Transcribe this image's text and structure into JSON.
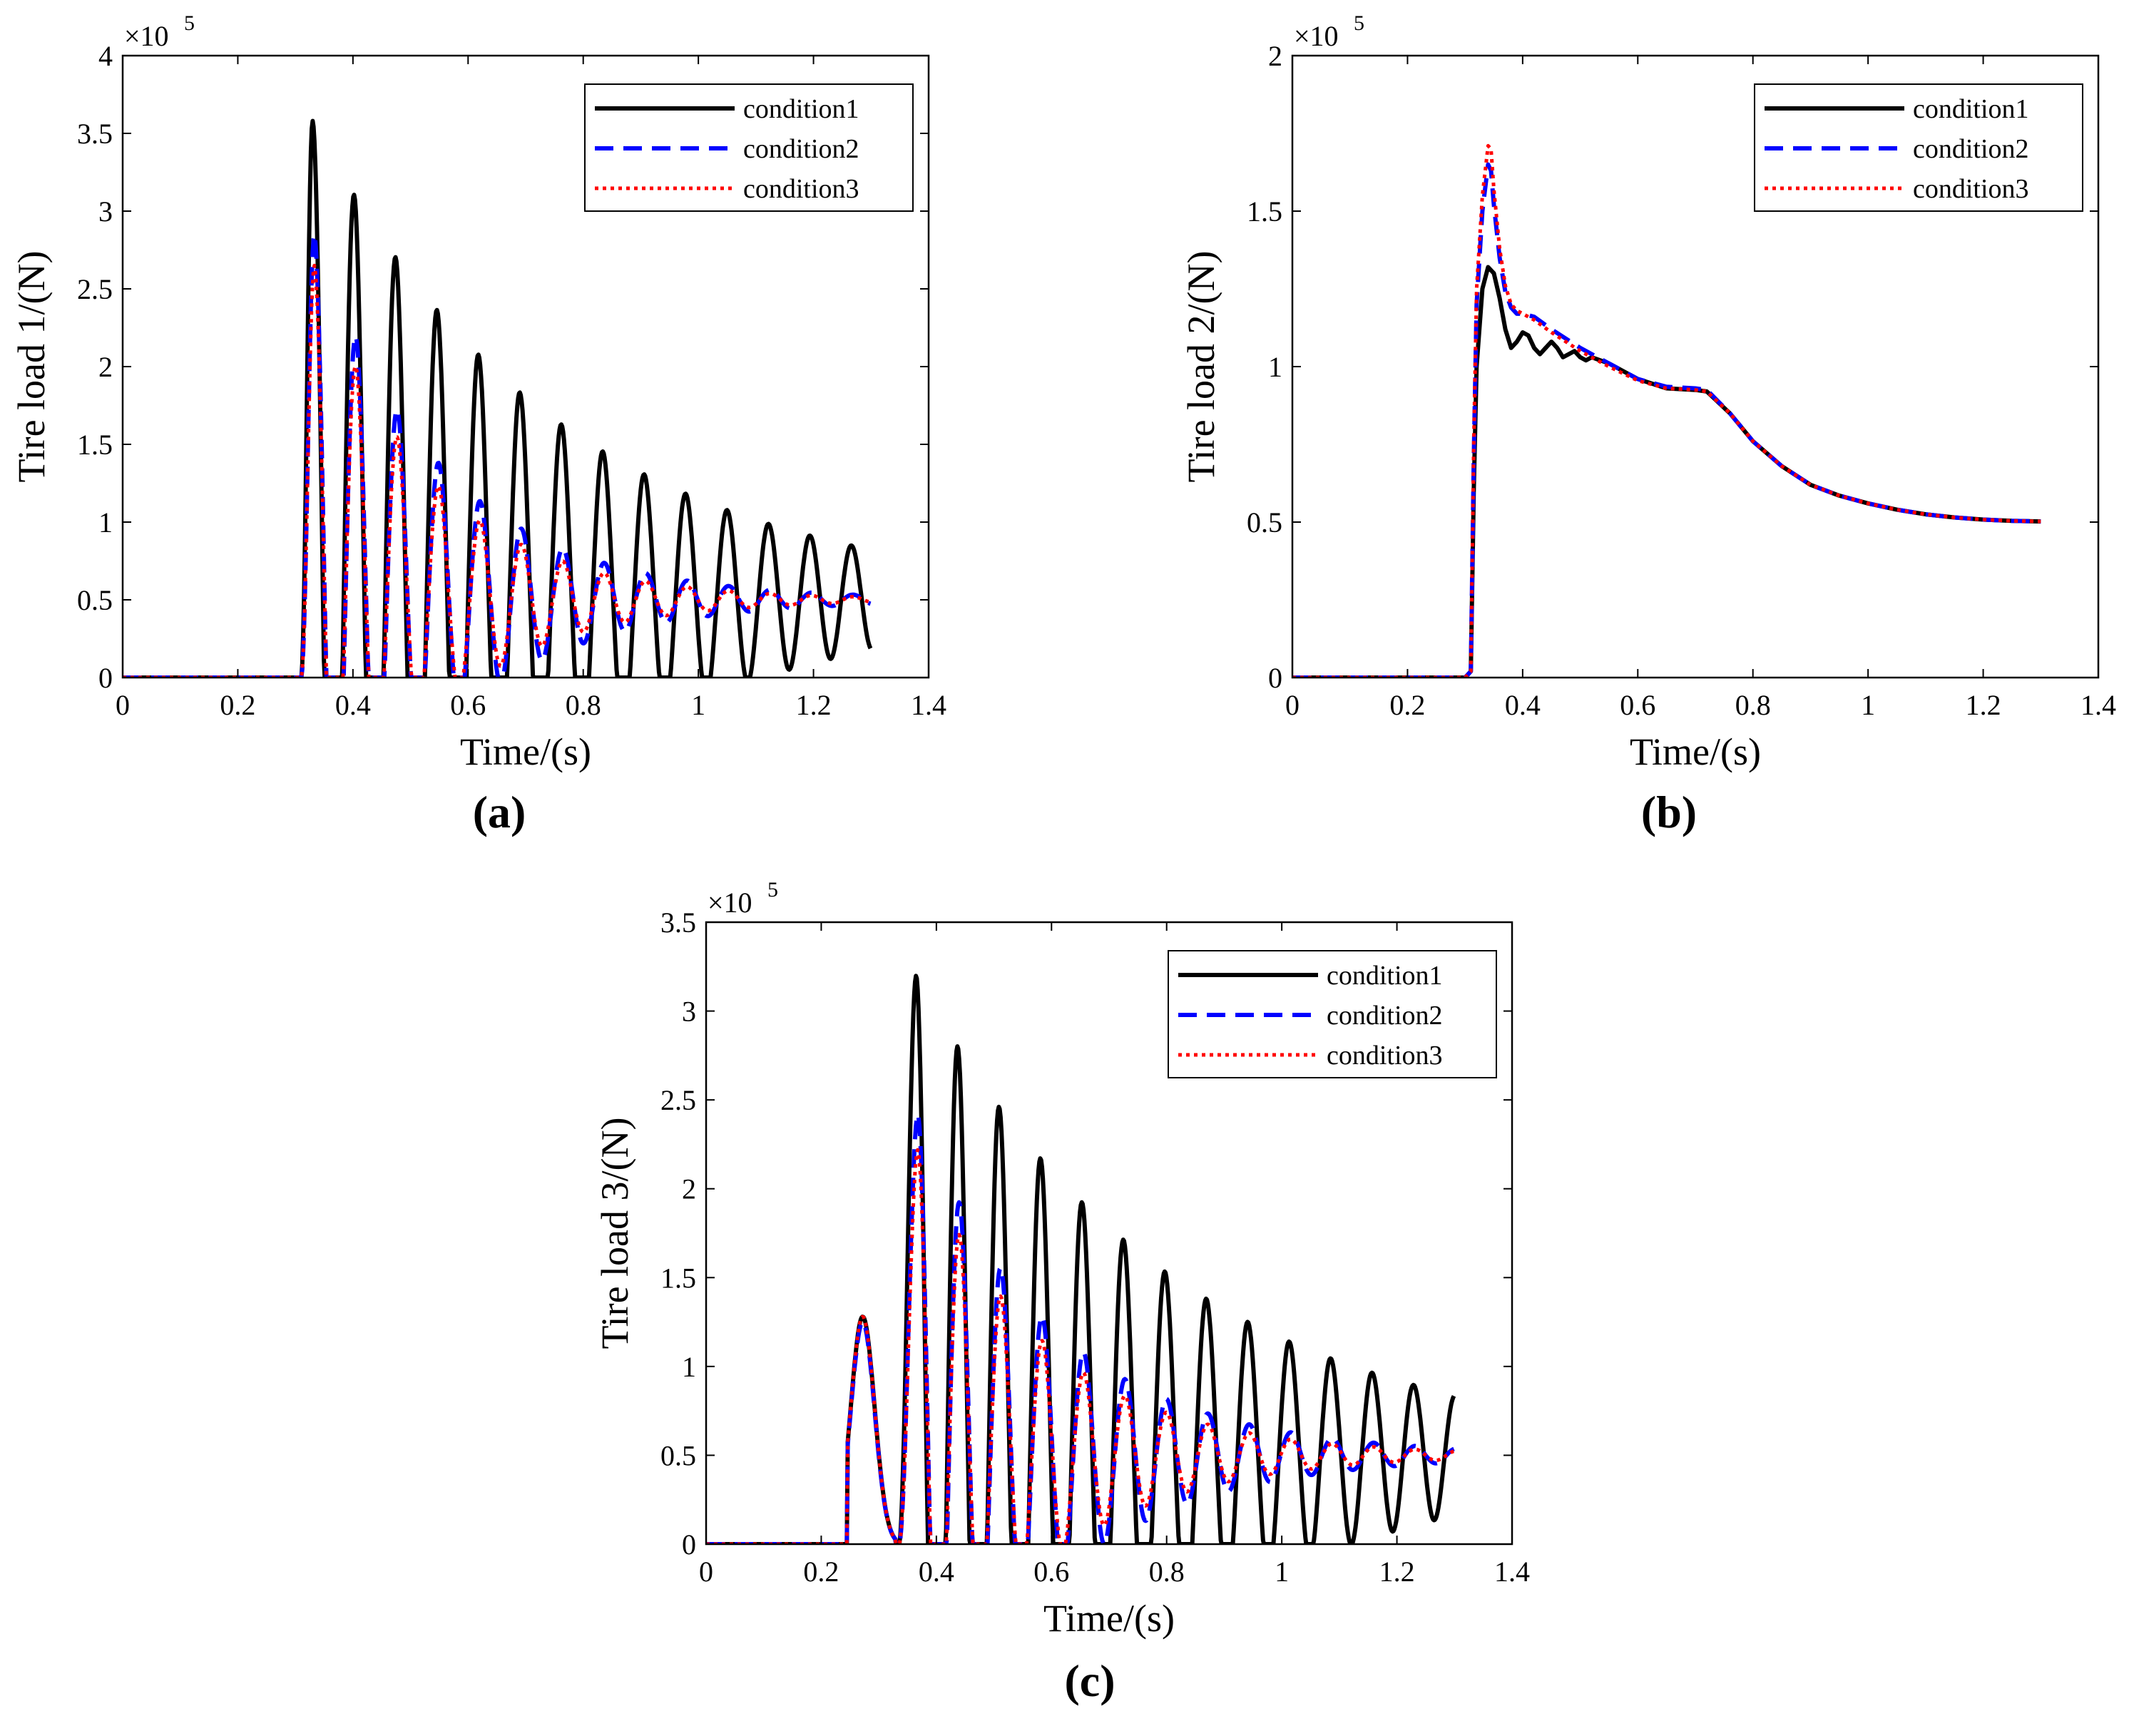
{
  "figure": {
    "panel_labels": [
      "(a)",
      "(b)",
      "(c)"
    ]
  },
  "chart_data": [
    {
      "type": "line",
      "panel": "(a)",
      "xlabel": "Time/(s)",
      "ylabel": "Tire load 1/(N)",
      "exponent_label": "×10",
      "exponent_power": "5",
      "xlim": [
        0,
        1.4
      ],
      "ylim": [
        0,
        4
      ],
      "xticks": [
        0,
        0.2,
        0.4,
        0.6,
        0.8,
        1,
        1.2,
        1.4
      ],
      "xtick_labels": [
        "0",
        "0.2",
        "0.4",
        "0.6",
        "0.8",
        "1",
        "1.2",
        "1.4"
      ],
      "yticks": [
        0,
        0.5,
        1,
        1.5,
        2,
        2.5,
        3,
        3.5,
        4
      ],
      "ytick_labels": [
        "0",
        "0.5",
        "1",
        "1.5",
        "2",
        "2.5",
        "3",
        "3.5",
        "4"
      ],
      "legend_position": "top-right",
      "series": [
        {
          "name": "condition1",
          "color": "#000000",
          "style": "solid",
          "params": {
            "t0": 0.31,
            "rise": 0.02,
            "peak": 3.58,
            "base": 0.5,
            "period": 0.072,
            "decay": 0.43,
            "firstPeak": 0.33,
            "floor": 0
          }
        },
        {
          "name": "condition2",
          "color": "#0000ff",
          "style": "dashed",
          "params": {
            "t0": 0.31,
            "rise": 0.02,
            "peak": 2.85,
            "base": 0.5,
            "period": 0.072,
            "decay": 0.22,
            "firstPeak": 0.333,
            "floor": 0
          }
        },
        {
          "name": "condition3",
          "color": "#ff0000",
          "style": "dotted",
          "params": {
            "t0": 0.31,
            "rise": 0.02,
            "peak": 2.65,
            "base": 0.5,
            "period": 0.072,
            "decay": 0.2,
            "firstPeak": 0.333,
            "floor": 0
          }
        }
      ]
    },
    {
      "type": "line",
      "panel": "(b)",
      "xlabel": "Time/(s)",
      "ylabel": "Tire load 2/(N)",
      "exponent_label": "×10",
      "exponent_power": "5",
      "xlim": [
        0,
        1.4
      ],
      "ylim": [
        0,
        2
      ],
      "xticks": [
        0,
        0.2,
        0.4,
        0.6,
        0.8,
        1,
        1.2,
        1.4
      ],
      "xtick_labels": [
        "0",
        "0.2",
        "0.4",
        "0.6",
        "0.8",
        "1",
        "1.2",
        "1.4"
      ],
      "yticks": [
        0,
        0.5,
        1,
        1.5,
        2
      ],
      "ytick_labels": [
        "0",
        "0.5",
        "1",
        "1.5",
        "2"
      ],
      "legend_position": "top-right",
      "series": [
        {
          "name": "condition1",
          "color": "#000000",
          "style": "solid",
          "points": [
            [
              0,
              0
            ],
            [
              0.3,
              0
            ],
            [
              0.31,
              0.02
            ],
            [
              0.315,
              0.6
            ],
            [
              0.32,
              1.0
            ],
            [
              0.33,
              1.25
            ],
            [
              0.34,
              1.32
            ],
            [
              0.35,
              1.3
            ],
            [
              0.36,
              1.22
            ],
            [
              0.37,
              1.12
            ],
            [
              0.38,
              1.06
            ],
            [
              0.39,
              1.08
            ],
            [
              0.4,
              1.11
            ],
            [
              0.41,
              1.1
            ],
            [
              0.42,
              1.06
            ],
            [
              0.43,
              1.04
            ],
            [
              0.44,
              1.06
            ],
            [
              0.45,
              1.08
            ],
            [
              0.46,
              1.06
            ],
            [
              0.47,
              1.03
            ],
            [
              0.48,
              1.04
            ],
            [
              0.49,
              1.05
            ],
            [
              0.5,
              1.03
            ],
            [
              0.51,
              1.02
            ],
            [
              0.52,
              1.03
            ],
            [
              0.55,
              1.01
            ],
            [
              0.6,
              0.96
            ],
            [
              0.65,
              0.93
            ],
            [
              0.7,
              0.925
            ],
            [
              0.72,
              0.92
            ],
            [
              0.76,
              0.85
            ],
            [
              0.8,
              0.76
            ],
            [
              0.85,
              0.68
            ],
            [
              0.9,
              0.62
            ],
            [
              0.95,
              0.585
            ],
            [
              1.0,
              0.56
            ],
            [
              1.05,
              0.54
            ],
            [
              1.1,
              0.525
            ],
            [
              1.15,
              0.515
            ],
            [
              1.2,
              0.508
            ],
            [
              1.25,
              0.504
            ],
            [
              1.3,
              0.502
            ]
          ]
        },
        {
          "name": "condition2",
          "color": "#0000ff",
          "style": "dashed",
          "points": [
            [
              0,
              0
            ],
            [
              0.3,
              0
            ],
            [
              0.31,
              0.02
            ],
            [
              0.315,
              0.7
            ],
            [
              0.32,
              1.2
            ],
            [
              0.33,
              1.5
            ],
            [
              0.34,
              1.65
            ],
            [
              0.345,
              1.63
            ],
            [
              0.35,
              1.52
            ],
            [
              0.36,
              1.35
            ],
            [
              0.37,
              1.24
            ],
            [
              0.38,
              1.19
            ],
            [
              0.39,
              1.17
            ],
            [
              0.4,
              1.17
            ],
            [
              0.42,
              1.16
            ],
            [
              0.45,
              1.12
            ],
            [
              0.5,
              1.06
            ],
            [
              0.55,
              1.01
            ],
            [
              0.6,
              0.96
            ],
            [
              0.65,
              0.935
            ],
            [
              0.7,
              0.93
            ],
            [
              0.72,
              0.925
            ],
            [
              0.76,
              0.85
            ],
            [
              0.8,
              0.76
            ],
            [
              0.85,
              0.68
            ],
            [
              0.9,
              0.62
            ],
            [
              0.95,
              0.585
            ],
            [
              1.0,
              0.56
            ],
            [
              1.05,
              0.54
            ],
            [
              1.1,
              0.525
            ],
            [
              1.15,
              0.515
            ],
            [
              1.2,
              0.508
            ],
            [
              1.25,
              0.504
            ],
            [
              1.3,
              0.502
            ]
          ]
        },
        {
          "name": "condition3",
          "color": "#ff0000",
          "style": "dotted",
          "points": [
            [
              0,
              0
            ],
            [
              0.3,
              0
            ],
            [
              0.31,
              0.02
            ],
            [
              0.315,
              0.75
            ],
            [
              0.32,
              1.25
            ],
            [
              0.33,
              1.55
            ],
            [
              0.34,
              1.71
            ],
            [
              0.345,
              1.7
            ],
            [
              0.35,
              1.57
            ],
            [
              0.36,
              1.38
            ],
            [
              0.37,
              1.26
            ],
            [
              0.38,
              1.2
            ],
            [
              0.39,
              1.18
            ],
            [
              0.4,
              1.17
            ],
            [
              0.42,
              1.15
            ],
            [
              0.45,
              1.11
            ],
            [
              0.5,
              1.05
            ],
            [
              0.55,
              1.0
            ],
            [
              0.6,
              0.955
            ],
            [
              0.65,
              0.93
            ],
            [
              0.7,
              0.925
            ],
            [
              0.72,
              0.92
            ],
            [
              0.76,
              0.85
            ],
            [
              0.8,
              0.76
            ],
            [
              0.85,
              0.68
            ],
            [
              0.9,
              0.62
            ],
            [
              0.95,
              0.585
            ],
            [
              1.0,
              0.56
            ],
            [
              1.05,
              0.54
            ],
            [
              1.1,
              0.525
            ],
            [
              1.15,
              0.515
            ],
            [
              1.2,
              0.508
            ],
            [
              1.25,
              0.504
            ],
            [
              1.3,
              0.502
            ]
          ]
        }
      ]
    },
    {
      "type": "line",
      "panel": "(c)",
      "xlabel": "Time/(s)",
      "ylabel": "Tire load 3/(N)",
      "exponent_label": "×10",
      "exponent_power": "5",
      "xlim": [
        0,
        1.4
      ],
      "ylim": [
        0,
        3.5
      ],
      "xticks": [
        0,
        0.2,
        0.4,
        0.6,
        0.8,
        1,
        1.2,
        1.4
      ],
      "xtick_labels": [
        "0",
        "0.2",
        "0.4",
        "0.6",
        "0.8",
        "1",
        "1.2",
        "1.4"
      ],
      "yticks": [
        0,
        0.5,
        1,
        1.5,
        2,
        2.5,
        3,
        3.5
      ],
      "ytick_labels": [
        "0",
        "0.5",
        "1",
        "1.5",
        "2",
        "2.5",
        "3",
        "3.5"
      ],
      "legend_position": "top-right",
      "series": [
        {
          "name": "condition1",
          "color": "#000000",
          "style": "solid",
          "params": {
            "t0": 0.245,
            "pre": true,
            "prePeak": 1.28,
            "preCenter": 0.272,
            "preEnd": 0.33,
            "rise": 0.03,
            "t1": 0.335,
            "peak": 3.2,
            "base": 0.5,
            "period": 0.072,
            "decay": 0.45,
            "firstPeak": 0.365,
            "floor": 0
          }
        },
        {
          "name": "condition2",
          "color": "#0000ff",
          "style": "dashed",
          "params": {
            "t0": 0.245,
            "pre": true,
            "prePeak": 1.25,
            "preCenter": 0.272,
            "preEnd": 0.33,
            "rise": 0.03,
            "t1": 0.335,
            "peak": 2.42,
            "base": 0.5,
            "period": 0.072,
            "decay": 0.24,
            "firstPeak": 0.368,
            "floor": 0
          }
        },
        {
          "name": "condition3",
          "color": "#ff0000",
          "style": "dotted",
          "params": {
            "t0": 0.245,
            "pre": true,
            "prePeak": 1.28,
            "preCenter": 0.272,
            "preEnd": 0.33,
            "rise": 0.03,
            "t1": 0.335,
            "peak": 2.22,
            "base": 0.5,
            "period": 0.072,
            "decay": 0.22,
            "firstPeak": 0.368,
            "floor": 0
          }
        }
      ]
    }
  ]
}
